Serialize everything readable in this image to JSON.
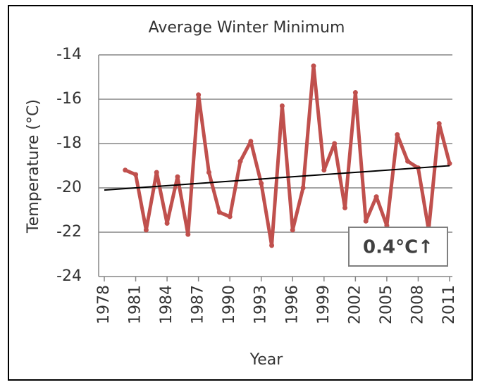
{
  "chart_data": {
    "type": "line",
    "title": "Average Winter Minimum",
    "x_label": "Year",
    "y_label": "Temperature (°C)",
    "x": [
      1980,
      1981,
      1982,
      1983,
      1984,
      1985,
      1986,
      1987,
      1988,
      1989,
      1990,
      1991,
      1992,
      1993,
      1994,
      1995,
      1996,
      1997,
      1998,
      1999,
      2000,
      2001,
      2002,
      2003,
      2004,
      2005,
      2006,
      2007,
      2008,
      2009,
      2010,
      2011
    ],
    "series": [
      {
        "color": "#c0504d",
        "values": [
          -19.2,
          -19.4,
          -21.9,
          -19.3,
          -21.6,
          -19.5,
          -22.1,
          -15.8,
          -19.3,
          -21.1,
          -21.3,
          -18.8,
          -17.9,
          -19.8,
          -22.6,
          -16.3,
          -21.9,
          -20.0,
          -14.5,
          -19.2,
          -18.0,
          -20.9,
          -15.7,
          -21.5,
          -20.4,
          -21.7,
          -17.6,
          -18.8,
          -19.1,
          -21.9,
          -17.1,
          -18.9
        ]
      }
    ],
    "trendline": {
      "x": [
        1978,
        2011
      ],
      "values": [
        -20.1,
        -19.0
      ],
      "color": "#000000"
    },
    "annotation": "0.4°C↑",
    "xlim": [
      1978,
      2011
    ],
    "xticks": [
      1978,
      1981,
      1984,
      1987,
      1990,
      1993,
      1996,
      1999,
      2002,
      2005,
      2008,
      2011
    ],
    "ylim": [
      -24,
      -14
    ],
    "yticks": [
      -24,
      -22,
      -20,
      -18,
      -16,
      -14
    ],
    "grid": true
  }
}
